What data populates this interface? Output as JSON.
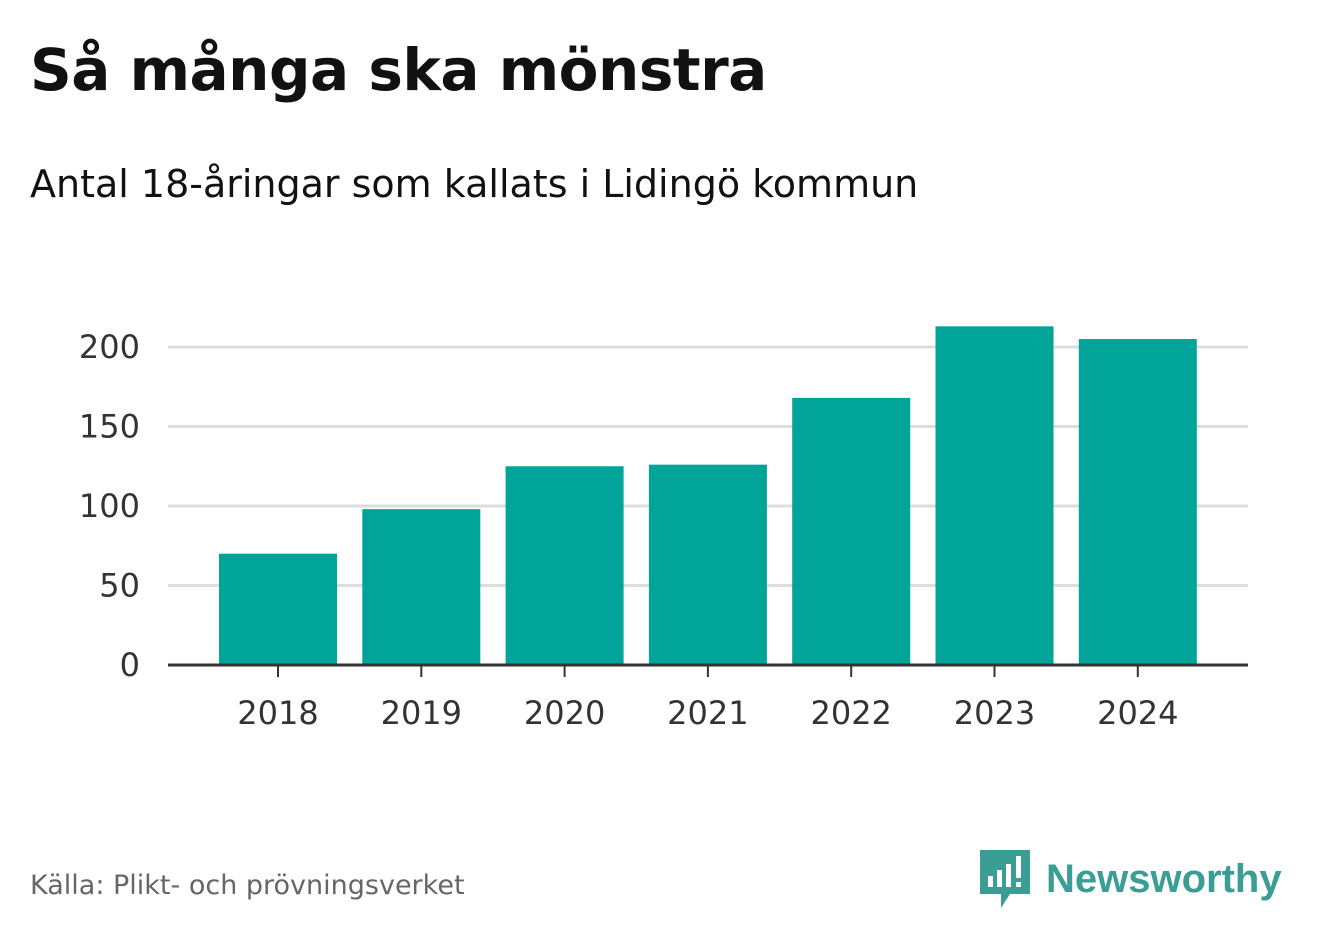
{
  "header": {
    "title": "Så många ska mönstra",
    "subtitle": "Antal 18-åringar som kallats i Lidingö kommun"
  },
  "footer": {
    "source": "Källa: Plikt- och prövningsverket",
    "brand": "Newsworthy",
    "brand_icon": "newsworthy-logo-icon"
  },
  "colors": {
    "bar": "#00a499",
    "grid": "#dddddd",
    "axis": "#333333",
    "brand": "#3b9e94"
  },
  "chart_data": {
    "type": "bar",
    "title": "Så många ska mönstra",
    "subtitle": "Antal 18-åringar som kallats i Lidingö kommun",
    "categories": [
      "2018",
      "2019",
      "2020",
      "2021",
      "2022",
      "2023",
      "2024"
    ],
    "values": [
      70,
      98,
      125,
      126,
      168,
      213,
      205
    ],
    "xlabel": "",
    "ylabel": "",
    "ylim": [
      0,
      200
    ],
    "yticks": [
      0,
      50,
      100,
      150,
      200
    ],
    "ytick_labels": [
      "0",
      "50",
      "100",
      "150",
      "200"
    ],
    "grid": true,
    "legend": "none"
  }
}
